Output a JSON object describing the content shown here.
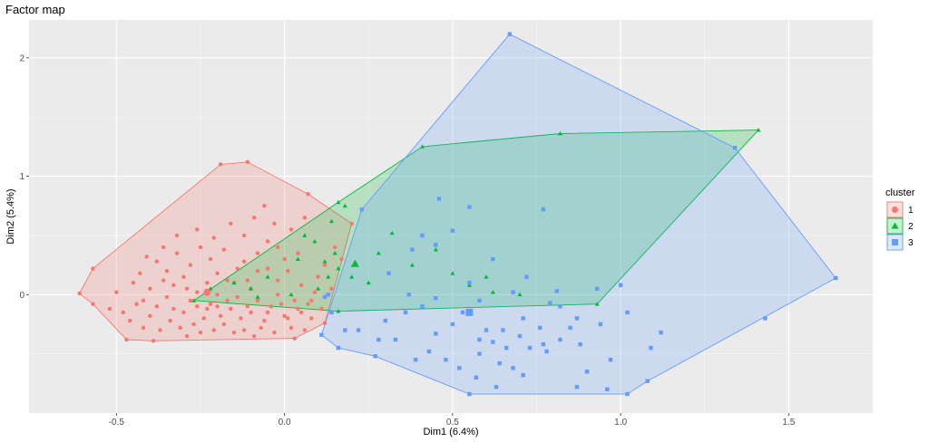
{
  "chart_data": {
    "type": "scatter",
    "title": "Factor map",
    "xlabel": "Dim1 (6.4%)",
    "ylabel": "Dim2 (5.4%)",
    "xlim": [
      -0.76,
      1.75
    ],
    "ylim": [
      -1.0,
      2.32
    ],
    "xticks": [
      -0.5,
      0.0,
      0.5,
      1.0,
      1.5
    ],
    "xtick_labels": [
      "-0.5",
      "0.0",
      "0.5",
      "1.0",
      "1.5"
    ],
    "yticks": [
      0,
      1,
      2
    ],
    "ytick_labels": [
      "0",
      "1",
      "2"
    ],
    "grid": true,
    "legend": {
      "title": "cluster",
      "position": "right"
    },
    "series": [
      {
        "name": "1",
        "color": "#F8766D",
        "marker": "circle",
        "hull": [
          [
            -0.61,
            0.01
          ],
          [
            -0.57,
            0.22
          ],
          [
            -0.19,
            1.1
          ],
          [
            -0.11,
            1.12
          ],
          [
            0.07,
            0.85
          ],
          [
            0.2,
            0.6
          ],
          [
            0.12,
            -0.24
          ],
          [
            0.03,
            -0.37
          ],
          [
            -0.39,
            -0.39
          ],
          [
            -0.47,
            -0.38
          ],
          [
            -0.57,
            -0.08
          ]
        ],
        "centroid": [
          -0.23,
          0.02
        ],
        "points": [
          [
            -0.61,
            0.01
          ],
          [
            -0.57,
            0.22
          ],
          [
            -0.19,
            1.1
          ],
          [
            -0.11,
            1.12
          ],
          [
            0.2,
            0.6
          ],
          [
            0.12,
            -0.24
          ],
          [
            0.03,
            -0.37
          ],
          [
            -0.39,
            -0.39
          ],
          [
            -0.47,
            -0.38
          ],
          [
            -0.57,
            -0.08
          ],
          [
            0.07,
            0.85
          ],
          [
            -0.38,
            0.28
          ],
          [
            -0.35,
            0.2
          ],
          [
            -0.32,
            0.35
          ],
          [
            -0.3,
            0.15
          ],
          [
            -0.28,
            0.25
          ],
          [
            -0.25,
            0.4
          ],
          [
            -0.22,
            0.3
          ],
          [
            -0.2,
            0.18
          ],
          [
            -0.18,
            0.38
          ],
          [
            -0.15,
            0.1
          ],
          [
            -0.12,
            0.28
          ],
          [
            -0.1,
            0.05
          ],
          [
            -0.08,
            0.2
          ],
          [
            -0.05,
            0.45
          ],
          [
            -0.02,
            0.12
          ],
          [
            0.0,
            0.3
          ],
          [
            0.02,
            0.55
          ],
          [
            0.05,
            0.08
          ],
          [
            0.08,
            -0.05
          ],
          [
            -0.45,
            0.1
          ],
          [
            -0.42,
            -0.05
          ],
          [
            -0.4,
            0.05
          ],
          [
            -0.38,
            -0.1
          ],
          [
            -0.35,
            -0.02
          ],
          [
            -0.33,
            0.08
          ],
          [
            -0.3,
            -0.15
          ],
          [
            -0.28,
            -0.05
          ],
          [
            -0.26,
            0.02
          ],
          [
            -0.24,
            -0.2
          ],
          [
            -0.22,
            -0.08
          ],
          [
            -0.2,
            0.0
          ],
          [
            -0.18,
            -0.25
          ],
          [
            -0.16,
            -0.12
          ],
          [
            -0.14,
            -0.02
          ],
          [
            -0.12,
            -0.3
          ],
          [
            -0.1,
            -0.15
          ],
          [
            -0.08,
            -0.05
          ],
          [
            -0.06,
            -0.22
          ],
          [
            -0.04,
            -0.1
          ],
          [
            -0.02,
            0.0
          ],
          [
            0.0,
            -0.18
          ],
          [
            0.02,
            -0.28
          ],
          [
            0.04,
            -0.12
          ],
          [
            0.06,
            -0.3
          ],
          [
            0.08,
            -0.2
          ],
          [
            -0.5,
            0.02
          ],
          [
            -0.48,
            -0.15
          ],
          [
            -0.46,
            -0.22
          ],
          [
            -0.44,
            -0.08
          ],
          [
            -0.42,
            -0.28
          ],
          [
            -0.4,
            -0.18
          ],
          [
            -0.37,
            -0.3
          ],
          [
            -0.34,
            -0.22
          ],
          [
            -0.31,
            -0.28
          ],
          [
            -0.29,
            -0.35
          ],
          [
            -0.27,
            -0.25
          ],
          [
            -0.25,
            -0.32
          ],
          [
            -0.23,
            -0.12
          ],
          [
            -0.21,
            -0.3
          ],
          [
            -0.19,
            -0.18
          ],
          [
            -0.17,
            -0.05
          ],
          [
            -0.15,
            -0.32
          ],
          [
            -0.13,
            -0.2
          ],
          [
            -0.11,
            -0.1
          ],
          [
            -0.09,
            -0.35
          ],
          [
            -0.07,
            -0.28
          ],
          [
            -0.05,
            -0.15
          ],
          [
            -0.03,
            -0.32
          ],
          [
            -0.01,
            -0.08
          ],
          [
            0.01,
            -0.2
          ],
          [
            0.03,
            -0.05
          ],
          [
            0.05,
            -0.15
          ],
          [
            0.07,
            -0.08
          ],
          [
            0.09,
            0.02
          ],
          [
            0.11,
            -0.12
          ],
          [
            0.14,
            0.05
          ],
          [
            -0.52,
            -0.12
          ],
          [
            -0.36,
            0.12
          ],
          [
            -0.33,
            -0.12
          ],
          [
            -0.29,
            0.05
          ],
          [
            -0.26,
            -0.1
          ],
          [
            -0.23,
            0.1
          ],
          [
            -0.2,
            -0.1
          ],
          [
            -0.17,
            0.12
          ],
          [
            -0.14,
            0.22
          ],
          [
            -0.11,
            0.12
          ],
          [
            -0.08,
            0.35
          ],
          [
            -0.05,
            0.22
          ],
          [
            -0.02,
            0.4
          ],
          [
            0.01,
            0.2
          ],
          [
            0.04,
            0.35
          ],
          [
            0.06,
            0.65
          ],
          [
            0.1,
            0.15
          ],
          [
            0.12,
            0.25
          ],
          [
            0.15,
            0.4
          ],
          [
            0.17,
            0.3
          ],
          [
            -0.43,
            0.18
          ],
          [
            -0.41,
            0.32
          ],
          [
            -0.36,
            0.4
          ],
          [
            -0.32,
            0.5
          ],
          [
            -0.26,
            0.55
          ],
          [
            -0.21,
            0.48
          ],
          [
            -0.16,
            0.6
          ],
          [
            -0.12,
            0.5
          ],
          [
            -0.09,
            0.65
          ],
          [
            -0.06,
            0.75
          ],
          [
            -0.03,
            0.6
          ]
        ]
      },
      {
        "name": "2",
        "color": "#00BA38",
        "marker": "triangle",
        "hull": [
          [
            -0.27,
            -0.05
          ],
          [
            0.16,
            0.78
          ],
          [
            0.41,
            1.25
          ],
          [
            0.82,
            1.36
          ],
          [
            1.41,
            1.39
          ],
          [
            0.93,
            -0.08
          ],
          [
            0.16,
            -0.14
          ]
        ],
        "centroid": [
          0.21,
          0.26
        ],
        "points": [
          [
            -0.27,
            -0.05
          ],
          [
            0.16,
            0.78
          ],
          [
            0.41,
            1.25
          ],
          [
            0.82,
            1.36
          ],
          [
            1.41,
            1.39
          ],
          [
            0.93,
            -0.08
          ],
          [
            0.16,
            -0.14
          ],
          [
            -0.22,
            0.05
          ],
          [
            -0.15,
            0.1
          ],
          [
            -0.08,
            -0.02
          ],
          [
            -0.05,
            0.15
          ],
          [
            0.02,
            0.0
          ],
          [
            0.04,
            0.3
          ],
          [
            0.06,
            0.5
          ],
          [
            0.09,
            0.45
          ],
          [
            0.1,
            0.05
          ],
          [
            0.12,
            0.28
          ],
          [
            0.13,
            0.15
          ],
          [
            0.14,
            0.62
          ],
          [
            0.15,
            0.35
          ],
          [
            0.16,
            0.22
          ],
          [
            0.18,
            0.75
          ],
          [
            0.2,
            0.15
          ],
          [
            0.25,
            0.1
          ],
          [
            0.28,
            0.35
          ],
          [
            0.32,
            0.52
          ],
          [
            0.38,
            0.25
          ],
          [
            0.45,
            0.38
          ],
          [
            0.5,
            0.18
          ],
          [
            0.55,
            0.08
          ],
          [
            0.6,
            0.15
          ],
          [
            0.62,
            0.02
          ],
          [
            0.7,
            0.0
          ],
          [
            -0.1,
            0.05
          ]
        ]
      },
      {
        "name": "3",
        "color": "#619CFF",
        "marker": "square",
        "hull": [
          [
            0.11,
            -0.34
          ],
          [
            0.23,
            0.72
          ],
          [
            0.67,
            2.2
          ],
          [
            1.34,
            1.24
          ],
          [
            1.64,
            0.14
          ],
          [
            1.08,
            -0.73
          ],
          [
            1.02,
            -0.84
          ],
          [
            0.55,
            -0.84
          ],
          [
            0.27,
            -0.52
          ],
          [
            0.16,
            -0.45
          ]
        ],
        "centroid": [
          0.55,
          -0.15
        ],
        "points": [
          [
            0.11,
            -0.34
          ],
          [
            0.23,
            0.72
          ],
          [
            0.67,
            2.2
          ],
          [
            1.34,
            1.24
          ],
          [
            1.64,
            0.14
          ],
          [
            1.08,
            -0.73
          ],
          [
            1.02,
            -0.84
          ],
          [
            0.55,
            -0.84
          ],
          [
            0.27,
            -0.52
          ],
          [
            0.16,
            -0.45
          ],
          [
            1.43,
            -0.2
          ],
          [
            0.46,
            0.81
          ],
          [
            0.55,
            0.74
          ],
          [
            0.77,
            0.72
          ],
          [
            0.5,
            0.54
          ],
          [
            0.45,
            0.42
          ],
          [
            0.41,
            0.5
          ],
          [
            0.31,
            0.18
          ],
          [
            0.38,
            0.38
          ],
          [
            0.55,
            0.1
          ],
          [
            0.62,
            0.3
          ],
          [
            0.72,
            0.15
          ],
          [
            0.81,
            0.03
          ],
          [
            0.93,
            0.05
          ],
          [
            0.37,
            0.0
          ],
          [
            0.45,
            -0.03
          ],
          [
            0.58,
            -0.05
          ],
          [
            0.68,
            0.02
          ],
          [
            0.79,
            -0.07
          ],
          [
            0.12,
            -0.02
          ],
          [
            0.14,
            -0.15
          ],
          [
            0.13,
            0.0
          ],
          [
            0.18,
            -0.3
          ],
          [
            0.22,
            -0.3
          ],
          [
            0.28,
            -0.38
          ],
          [
            0.33,
            -0.38
          ],
          [
            0.45,
            -0.33
          ],
          [
            0.5,
            -0.25
          ],
          [
            0.58,
            -0.38
          ],
          [
            0.62,
            -0.4
          ],
          [
            0.65,
            -0.3
          ],
          [
            0.7,
            -0.35
          ],
          [
            0.77,
            -0.42
          ],
          [
            0.82,
            -0.38
          ],
          [
            0.88,
            -0.42
          ],
          [
            0.43,
            -0.48
          ],
          [
            0.48,
            -0.55
          ],
          [
            0.52,
            -0.62
          ],
          [
            0.58,
            -0.5
          ],
          [
            0.64,
            -0.58
          ],
          [
            0.68,
            -0.62
          ],
          [
            0.73,
            -0.45
          ],
          [
            0.78,
            -0.48
          ],
          [
            0.9,
            -0.65
          ],
          [
            0.97,
            -0.55
          ],
          [
            1.09,
            -0.45
          ],
          [
            1.0,
            0.08
          ],
          [
            0.85,
            -0.28
          ],
          [
            0.3,
            -0.22
          ],
          [
            0.36,
            -0.15
          ],
          [
            0.41,
            -0.1
          ],
          [
            0.53,
            -0.15
          ],
          [
            0.6,
            -0.3
          ],
          [
            0.66,
            -0.45
          ],
          [
            0.71,
            -0.2
          ],
          [
            0.76,
            -0.28
          ],
          [
            0.82,
            -0.1
          ],
          [
            0.87,
            -0.2
          ],
          [
            0.94,
            -0.25
          ],
          [
            1.02,
            -0.15
          ],
          [
            1.12,
            -0.32
          ],
          [
            0.39,
            -0.55
          ],
          [
            0.57,
            -0.7
          ],
          [
            0.63,
            -0.78
          ],
          [
            0.71,
            -0.68
          ],
          [
            0.87,
            -0.78
          ],
          [
            0.96,
            -0.8
          ]
        ]
      }
    ]
  }
}
